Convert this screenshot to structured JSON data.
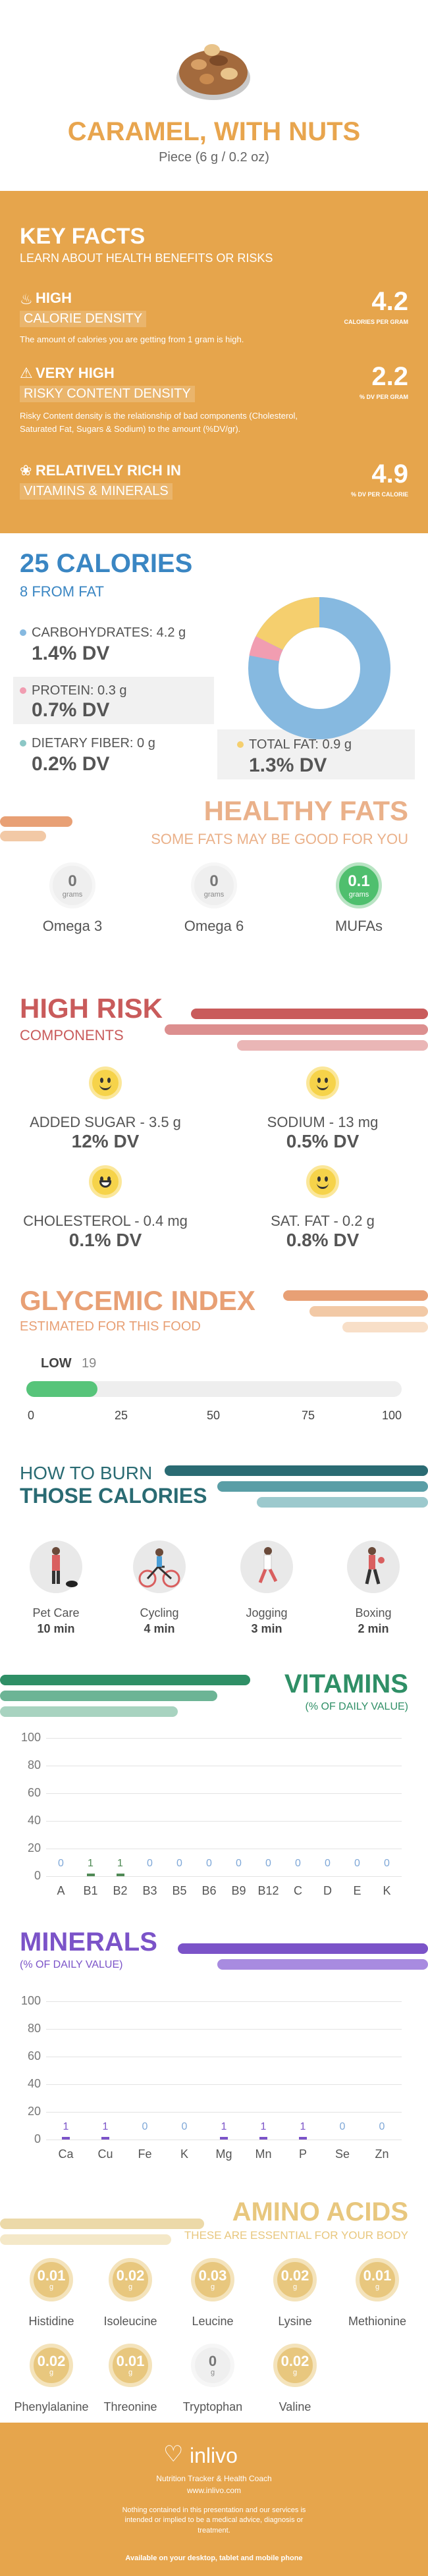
{
  "header": {
    "title": "CARAMEL, WITH NUTS",
    "serving": "Piece (6 g / 0.2 oz)"
  },
  "key_facts": {
    "title": "KEY FACTS",
    "subtitle": "LEARN ABOUT HEALTH BENEFITS OR RISKS",
    "items": [
      {
        "level": "HIGH",
        "label": "CALORIE DENSITY",
        "desc": "The amount of calories you are getting from 1 gram is high.",
        "value": "4.2",
        "unit": "CALORIES PER GRAM"
      },
      {
        "level": "VERY HIGH",
        "label": "RISKY CONTENT DENSITY",
        "desc": "Risky Content density is the relationship of bad components (Cholesterol, Saturated Fat, Sugars & Sodium) to the amount (%DV/gr).",
        "value": "2.2",
        "unit": "% DV PER GRAM"
      },
      {
        "level": "RELATIVELY RICH  IN",
        "label": "VITAMINS & MINERALS",
        "desc": "",
        "value": "4.9",
        "unit": "% DV PER CALORIE"
      }
    ]
  },
  "calories": {
    "title": "25 CALORIES",
    "from_fat": "8 FROM FAT",
    "items": [
      {
        "label": "CARBOHYDRATES: 4.2 g",
        "dv": "1.4% DV",
        "color": "#86b9e0"
      },
      {
        "label": "PROTEIN: 0.3 g",
        "dv": "0.7% DV",
        "color": "#f19db1"
      },
      {
        "label": "DIETARY FIBER: 0 g",
        "dv": "0.2% DV",
        "color": "#8cc7c6"
      },
      {
        "label": "TOTAL FAT: 0.9 g",
        "dv": "1.3% DV",
        "color": "#f5cf6e"
      }
    ]
  },
  "healthy_fats": {
    "title": "HEALTHY FATS",
    "subtitle": "SOME FATS MAY BE GOOD FOR YOU",
    "items": [
      {
        "value": "0",
        "unit": "grams",
        "name": "Omega 3",
        "highlight": false
      },
      {
        "value": "0",
        "unit": "grams",
        "name": "Omega 6",
        "highlight": false
      },
      {
        "value": "0.1",
        "unit": "grams",
        "name": "MUFAs",
        "highlight": true
      }
    ]
  },
  "high_risk": {
    "title": "HIGH RISK",
    "subtitle": "COMPONENTS",
    "items": [
      {
        "label": "ADDED SUGAR - 3.5 g",
        "dv": "12% DV"
      },
      {
        "label": "SODIUM - 13 mg",
        "dv": "0.5% DV"
      },
      {
        "label": "CHOLESTEROL - 0.4 mg",
        "dv": "0.1% DV"
      },
      {
        "label": "SAT. FAT - 0.2 g",
        "dv": "0.8% DV"
      }
    ]
  },
  "glycemic": {
    "title": "GLYCEMIC INDEX",
    "subtitle": "ESTIMATED FOR THIS FOOD",
    "level": "LOW",
    "value": 19,
    "value_text": "19",
    "ticks": [
      "0",
      "25",
      "50",
      "75",
      "100"
    ]
  },
  "burn": {
    "title1": "HOW TO BURN",
    "title2": "THOSE CALORIES",
    "items": [
      {
        "name": "Pet Care",
        "time": "10 min"
      },
      {
        "name": "Cycling",
        "time": "4 min"
      },
      {
        "name": "Jogging",
        "time": "3 min"
      },
      {
        "name": "Boxing",
        "time": "2 min"
      }
    ]
  },
  "vitamins": {
    "title": "VITAMINS",
    "subtitle": "(% OF DAILY VALUE)"
  },
  "minerals": {
    "title": "MINERALS",
    "subtitle": "(% OF DAILY VALUE)"
  },
  "chart_data": [
    {
      "type": "bar",
      "title": "VITAMINS",
      "categories": [
        "A",
        "B1",
        "B2",
        "B3",
        "B5",
        "B6",
        "B9",
        "B12",
        "C",
        "D",
        "E",
        "K"
      ],
      "values": [
        0,
        1,
        1,
        0,
        0,
        0,
        0,
        0,
        0,
        0,
        0,
        0
      ],
      "yticks": [
        "0",
        "20",
        "40",
        "60",
        "80",
        "100"
      ],
      "ylim": [
        0,
        100
      ],
      "colors": {
        "zero": "#7fa8d8",
        "nonzero": "#4f8a55"
      }
    },
    {
      "type": "bar",
      "title": "MINERALS",
      "categories": [
        "Ca",
        "Cu",
        "Fe",
        "K",
        "Mg",
        "Mn",
        "P",
        "Se",
        "Zn"
      ],
      "values": [
        1,
        1,
        0,
        0,
        1,
        1,
        1,
        0,
        0
      ],
      "yticks": [
        "0",
        "20",
        "40",
        "60",
        "80",
        "100"
      ],
      "ylim": [
        0,
        100
      ],
      "colors": {
        "zero": "#7fa8d8",
        "nonzero": "#7b53c8"
      }
    }
  ],
  "amino": {
    "title": "AMINO ACIDS",
    "subtitle": "THESE ARE ESSENTIAL FOR YOUR BODY",
    "unit": "g",
    "items": [
      {
        "value": "0.01",
        "name": "Histidine"
      },
      {
        "value": "0.02",
        "name": "Isoleucine"
      },
      {
        "value": "0.03",
        "name": "Leucine"
      },
      {
        "value": "0.02",
        "name": "Lysine"
      },
      {
        "value": "0.01",
        "name": "Methionine"
      },
      {
        "value": "0.02",
        "name": "Phenylalanine"
      },
      {
        "value": "0.01",
        "name": "Threonine"
      },
      {
        "value": "0",
        "name": "Tryptophan"
      },
      {
        "value": "0.02",
        "name": "Valine"
      }
    ]
  },
  "footer": {
    "brand": "inlivo",
    "tagline": "Nutrition Tracker & Health Coach",
    "url": "www.inlivo.com",
    "disclaimer": "Nothing contained in this presentation and our services is intended or implied to be a medical advice, diagnosis or treatment.",
    "available": "Available on your desktop, tablet and mobile phone"
  }
}
